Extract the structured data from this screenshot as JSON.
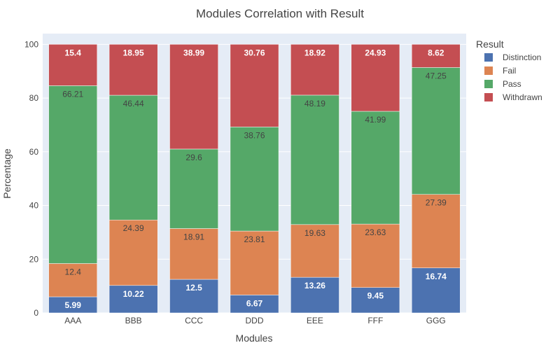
{
  "chart_data": {
    "type": "bar",
    "stacked": true,
    "title": "Modules Correlation with Result",
    "xlabel": "Modules",
    "ylabel": "Percentage",
    "ylim": [
      0,
      104
    ],
    "yticks": [
      0,
      20,
      40,
      60,
      80,
      100
    ],
    "grid": true,
    "legend_position": "right",
    "legend_title": "Result",
    "categories": [
      "AAA",
      "BBB",
      "CCC",
      "DDD",
      "EEE",
      "FFF",
      "GGG"
    ],
    "series": [
      {
        "name": "Distinction",
        "color": "#4c72b0",
        "label_color": "#ffffff",
        "values": [
          5.99,
          10.22,
          12.5,
          6.67,
          13.26,
          9.45,
          16.74
        ]
      },
      {
        "name": "Fail",
        "color": "#dd8452",
        "label_color": "#444444",
        "values": [
          12.4,
          24.39,
          18.91,
          23.81,
          19.63,
          23.63,
          27.39
        ]
      },
      {
        "name": "Pass",
        "color": "#55a868",
        "label_color": "#444444",
        "values": [
          66.21,
          46.44,
          29.6,
          38.76,
          48.19,
          41.99,
          47.25
        ]
      },
      {
        "name": "Withdrawn",
        "color": "#c44e52",
        "label_color": "#ffffff",
        "values": [
          15.4,
          18.95,
          38.99,
          30.76,
          18.92,
          24.93,
          8.62
        ]
      }
    ]
  }
}
